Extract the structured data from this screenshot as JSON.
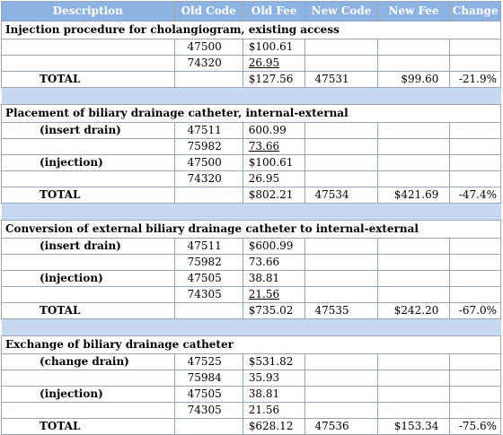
{
  "headers": {
    "description": "Description",
    "old_code": "Old Code",
    "old_fee": "Old Fee",
    "new_code": "New Code",
    "new_fee": "New Fee",
    "change": "Change"
  },
  "sections": [
    {
      "title": "Injection procedure for cholangiogram, existing access",
      "rows": [
        {
          "label": "",
          "old_code": "47500",
          "old_fee": "$100.61",
          "underline": false
        },
        {
          "label": "",
          "old_code": "74320",
          "old_fee": "26.95",
          "underline": true
        }
      ],
      "total": {
        "label": "TOTAL",
        "old_fee": "$127.56",
        "new_code": "47531",
        "new_fee": "$99.60",
        "change": "-21.9%"
      }
    },
    {
      "title": "Placement of biliary drainage catheter, internal-external",
      "rows": [
        {
          "label": "(insert drain)",
          "old_code": "47511",
          "old_fee": "600.99",
          "underline": false
        },
        {
          "label": "",
          "old_code": "75982",
          "old_fee": "73.66",
          "underline": true
        },
        {
          "label": "(injection)",
          "old_code": "47500",
          "old_fee": "$100.61",
          "underline": false
        },
        {
          "label": "",
          "old_code": "74320",
          "old_fee": "26.95",
          "underline": false
        }
      ],
      "total": {
        "label": "TOTAL",
        "old_fee": "$802.21",
        "new_code": "47534",
        "new_fee": "$421.69",
        "change": "-47.4%"
      }
    },
    {
      "title": "Conversion of external biliary drainage catheter to internal-external",
      "rows": [
        {
          "label": "(insert drain)",
          "old_code": "47511",
          "old_fee": "$600.99",
          "underline": false
        },
        {
          "label": "",
          "old_code": "75982",
          "old_fee": "73.66",
          "underline": false
        },
        {
          "label": "(injection)",
          "old_code": "47505",
          "old_fee": "38.81",
          "underline": false
        },
        {
          "label": "",
          "old_code": "74305",
          "old_fee": "21.56",
          "underline": true
        }
      ],
      "total": {
        "label": "TOTAL",
        "old_fee": "$735.02",
        "new_code": "47535",
        "new_fee": "$242.20",
        "change": "-67.0%"
      }
    },
    {
      "title": "Exchange of biliary drainage catheter",
      "rows": [
        {
          "label": "(change drain)",
          "old_code": "47525",
          "old_fee": "$531.82",
          "underline": false
        },
        {
          "label": "",
          "old_code": "75984",
          "old_fee": "35.93",
          "underline": false
        },
        {
          "label": "(injection)",
          "old_code": "47505",
          "old_fee": "38.81",
          "underline": false
        },
        {
          "label": "",
          "old_code": "74305",
          "old_fee": "21.56",
          "underline": false
        }
      ],
      "total": {
        "label": "TOTAL",
        "old_fee": "$628.12",
        "new_code": "47536",
        "new_fee": "$153.34",
        "change": "-75.6%"
      }
    }
  ],
  "colors": {
    "header_bg": "#8db3e2",
    "spacer_bg": "#c6d9f1",
    "border": "#9aa7b8"
  }
}
